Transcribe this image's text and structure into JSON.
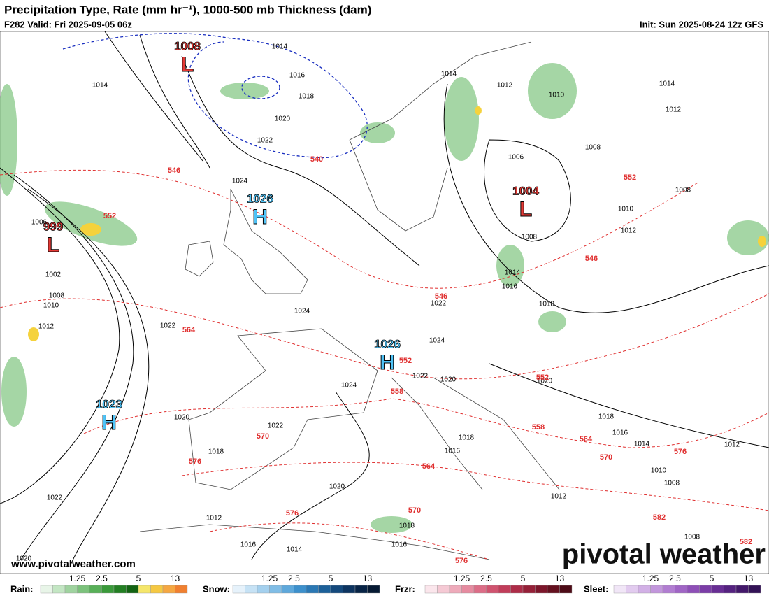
{
  "header": {
    "title": "Precipitation Type, Rate (mm hr⁻¹), 1000-500 mb Thickness (dam)",
    "valid": "F282 Valid: Fri 2025-09-05 06z",
    "init": "Init: Sun 2025-08-24 12z GFS"
  },
  "centers": [
    {
      "value": 1008,
      "letter": "L"
    },
    {
      "value": 999,
      "letter": "L"
    },
    {
      "value": 1004,
      "letter": "L"
    },
    {
      "value": 1026,
      "letter": "H"
    },
    {
      "value": 1026,
      "letter": "H"
    },
    {
      "value": 1023,
      "letter": "H"
    }
  ],
  "isobar_labels": [
    1014,
    1016,
    1018,
    1020,
    1022,
    1024,
    1014,
    1006,
    1002,
    1008,
    1010,
    1012,
    1022,
    1024,
    1024,
    1022,
    1020,
    1024,
    1022,
    1020,
    1022,
    1018,
    1012,
    1016,
    1014,
    1020,
    1018,
    1016,
    1018,
    1016,
    1022,
    1020,
    1014,
    1012,
    1010,
    1014,
    1012,
    1008,
    1006,
    1008,
    1010,
    1012,
    1008,
    1014,
    1016,
    1018,
    1020,
    1018,
    1016,
    1014,
    1012,
    1010,
    1008,
    1012,
    1008
  ],
  "thickness_labels": [
    540,
    546,
    552,
    546,
    546,
    552,
    564,
    552,
    552,
    558,
    558,
    564,
    570,
    576,
    570,
    576,
    564,
    576,
    570,
    576,
    582,
    582
  ],
  "legend": [
    {
      "name": "Rain:",
      "ticks": [
        1.25,
        2.5,
        5,
        13
      ]
    },
    {
      "name": "Snow:",
      "ticks": [
        1.25,
        2.5,
        5,
        13
      ]
    },
    {
      "name": "Frzr:",
      "ticks": [
        1.25,
        2.5,
        5,
        13
      ]
    },
    {
      "name": "Sleet:",
      "ticks": [
        1.25,
        2.5,
        5,
        13
      ]
    }
  ],
  "watermark": "www.pivotalweather.com",
  "logo": "pivotal weather"
}
